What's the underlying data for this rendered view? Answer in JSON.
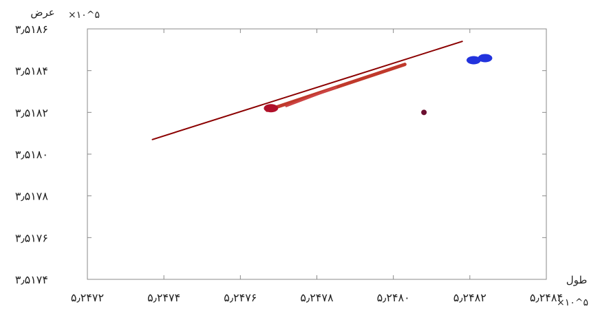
{
  "chart_data": {
    "type": "line",
    "xlabel": "طول",
    "ylabel": "عرض",
    "x_scale_label": "×۱۰^۵",
    "y_scale_label": "×۱۰^۵",
    "xlim": [
      5.2472,
      5.2484
    ],
    "ylim": [
      3.5174,
      3.5186
    ],
    "x_ticks": [
      5.2472,
      5.2474,
      5.2476,
      5.2478,
      5.248,
      5.2482,
      5.2484
    ],
    "x_tick_labels": [
      "۵٫۲۴۷۲",
      "۵٫۲۴۷۴",
      "۵٫۲۴۷۶",
      "۵٫۲۴۷۸",
      "۵٫۲۴۸۰",
      "۵٫۲۴۸۲",
      "۵٫۲۴۸۴"
    ],
    "y_ticks": [
      3.5186,
      3.5184,
      3.5182,
      3.518,
      3.5178,
      3.5176,
      3.5174
    ],
    "y_tick_labels": [
      "۳٫۵۱۸۶",
      "۳٫۵۱۸۴",
      "۳٫۵۱۸۲",
      "۳٫۵۱۸۰",
      "۳٫۵۱۷۸",
      "۳٫۵۱۷۶",
      "۳٫۵۱۷۴"
    ],
    "grid": false,
    "series": [
      {
        "color": "#8b0000",
        "kind": "line",
        "width": 2,
        "x": [
          5.24737,
          5.24818
        ],
        "y": [
          3.51807,
          3.51854
        ]
      },
      {
        "color": "#c0392b",
        "kind": "line",
        "width": 5,
        "x": [
          5.24767,
          5.24803
        ],
        "y": [
          3.51821,
          3.51843
        ]
      },
      {
        "color": "#cc4444",
        "kind": "line",
        "width": 3,
        "x": [
          5.24772,
          5.24785
        ],
        "y": [
          3.51823,
          3.51832
        ]
      },
      {
        "color": "#b0102a",
        "kind": "blob",
        "r": 8,
        "x": [
          5.24768
        ],
        "y": [
          3.51822
        ]
      },
      {
        "color": "#2233dd",
        "kind": "blob",
        "r": 8,
        "x": [
          5.24821,
          5.24824
        ],
        "y": [
          3.51845,
          3.51846
        ]
      },
      {
        "color": "#6b1030",
        "kind": "point",
        "r": 4,
        "x": [
          5.24808
        ],
        "y": [
          3.5182
        ]
      }
    ]
  }
}
